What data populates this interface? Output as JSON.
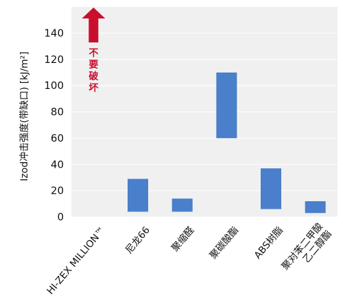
{
  "chart_data": {
    "type": "bar",
    "ylabel": "Izod冲击强度(带缺口) [kJ/m²]",
    "ylim": [
      0,
      160
    ],
    "yticks": [
      0,
      20,
      40,
      60,
      80,
      100,
      120,
      140
    ],
    "categories": [
      {
        "label": "HI-ZEX MILLION™",
        "color": "#c8102e",
        "low": null,
        "high": null,
        "annotation": "不要破坏"
      },
      {
        "label": "尼龙66",
        "color": "#111111",
        "low": 4,
        "high": 29
      },
      {
        "label": "聚缩醛",
        "color": "#111111",
        "low": 4,
        "high": 14
      },
      {
        "label": "聚碳酸酯",
        "color": "#111111",
        "low": 60,
        "high": 110
      },
      {
        "label": "ABS树脂",
        "color": "#111111",
        "low": 6,
        "high": 37
      },
      {
        "label": "聚对苯二甲酸乙二醇酯",
        "lines": [
          "聚对苯二甲酸",
          "乙二醇酯"
        ],
        "color": "#111111",
        "low": 3,
        "high": 12
      }
    ],
    "bar_color": "#4a7fcb",
    "arrow_color": "#c8102e",
    "plot_bg": "#f0f0f0",
    "grid": true
  }
}
